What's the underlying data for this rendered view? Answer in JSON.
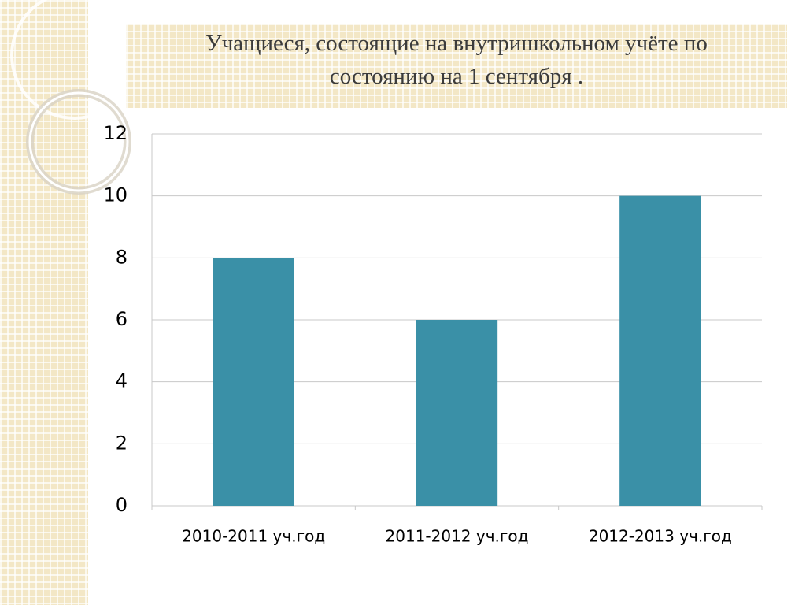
{
  "chart_data": {
    "type": "bar",
    "title": "Учащиеся, состоящие на внутришкольном учёте по состоянию на 1 сентября .",
    "categories": [
      "2010-2011 уч.год",
      "2011-2012 уч.год",
      "2012-2013 уч.год"
    ],
    "values": [
      8,
      6,
      10
    ],
    "color": "#3a90a7",
    "ylim": [
      0,
      12
    ],
    "yticks": [
      0,
      2,
      4,
      6,
      8,
      10,
      12
    ],
    "grid": true
  }
}
